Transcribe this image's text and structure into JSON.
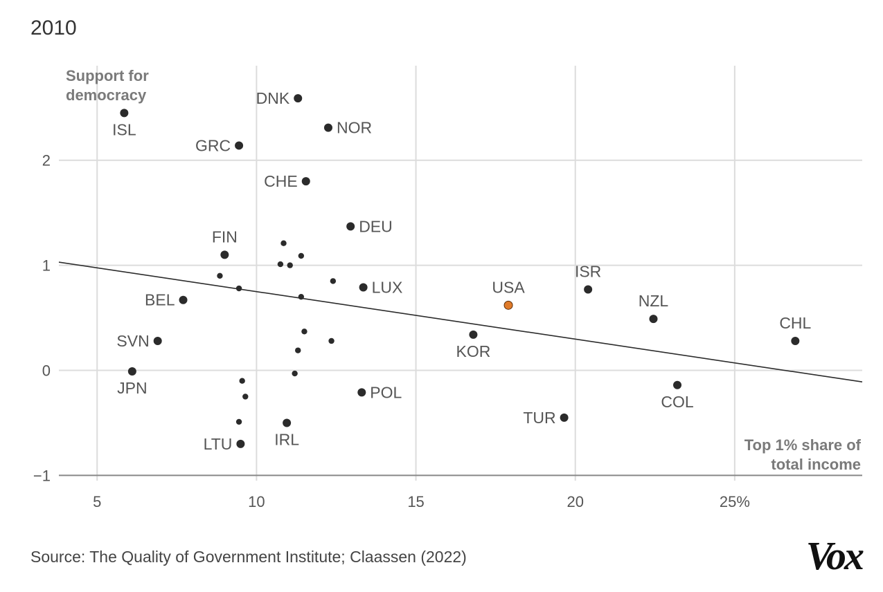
{
  "header": {
    "year": "2010"
  },
  "footer": {
    "source": "Source: The Quality of Government Institute; Claassen (2022)",
    "logo": "Vox"
  },
  "colors": {
    "point": "#2b2b2b",
    "highlight": "#e07b2a",
    "grid": "#dcdcdc",
    "trend": "#2b2b2b"
  },
  "chart_data": {
    "type": "scatter",
    "ylabel_lines": [
      "Support for",
      "democracy"
    ],
    "xlabel_lines": [
      "Top 1% share of",
      "total income"
    ],
    "xlim": [
      3.8,
      29.0
    ],
    "ylim": [
      -1.05,
      2.9
    ],
    "x_ticks": [
      5,
      10,
      15,
      20,
      25
    ],
    "x_tick_labels": [
      "5",
      "10",
      "15",
      "20",
      "25%"
    ],
    "y_ticks": [
      -1,
      0,
      1,
      2
    ],
    "y_tick_labels": [
      "−1",
      "0",
      "1",
      "2"
    ],
    "grid": true,
    "trend_line": {
      "x": [
        3.8,
        29.0
      ],
      "y": [
        1.03,
        -0.11
      ]
    },
    "points": [
      {
        "label": "ISL",
        "x": 5.85,
        "y": 2.45,
        "pos": "below"
      },
      {
        "label": "DNK",
        "x": 11.3,
        "y": 2.59,
        "pos": "left"
      },
      {
        "label": "NOR",
        "x": 12.25,
        "y": 2.31,
        "pos": "right"
      },
      {
        "label": "GRC",
        "x": 9.45,
        "y": 2.14,
        "pos": "left"
      },
      {
        "label": "CHE",
        "x": 11.55,
        "y": 1.8,
        "pos": "left"
      },
      {
        "label": "DEU",
        "x": 12.95,
        "y": 1.37,
        "pos": "right"
      },
      {
        "label": "FIN",
        "x": 9.0,
        "y": 1.1,
        "pos": "above"
      },
      {
        "label": "LUX",
        "x": 13.35,
        "y": 0.79,
        "pos": "right"
      },
      {
        "label": "BEL",
        "x": 7.7,
        "y": 0.67,
        "pos": "left"
      },
      {
        "label": "USA",
        "x": 17.9,
        "y": 0.62,
        "pos": "above",
        "highlight": true
      },
      {
        "label": "ISR",
        "x": 20.4,
        "y": 0.77,
        "pos": "above"
      },
      {
        "label": "NZL",
        "x": 22.45,
        "y": 0.49,
        "pos": "above"
      },
      {
        "label": "CHL",
        "x": 26.9,
        "y": 0.28,
        "pos": "above"
      },
      {
        "label": "KOR",
        "x": 16.8,
        "y": 0.34,
        "pos": "below"
      },
      {
        "label": "SVN",
        "x": 6.9,
        "y": 0.28,
        "pos": "left"
      },
      {
        "label": "JPN",
        "x": 6.1,
        "y": -0.01,
        "pos": "below"
      },
      {
        "label": "COL",
        "x": 23.2,
        "y": -0.14,
        "pos": "below"
      },
      {
        "label": "POL",
        "x": 13.3,
        "y": -0.21,
        "pos": "right"
      },
      {
        "label": "TUR",
        "x": 19.65,
        "y": -0.45,
        "pos": "left"
      },
      {
        "label": "IRL",
        "x": 10.95,
        "y": -0.5,
        "pos": "below"
      },
      {
        "label": "LTU",
        "x": 9.5,
        "y": -0.7,
        "pos": "left"
      },
      {
        "label": "",
        "x": 10.85,
        "y": 1.21,
        "small": true
      },
      {
        "label": "",
        "x": 11.4,
        "y": 1.09,
        "small": true
      },
      {
        "label": "",
        "x": 10.75,
        "y": 1.01,
        "small": true
      },
      {
        "label": "",
        "x": 11.05,
        "y": 1.0,
        "small": true
      },
      {
        "label": "",
        "x": 8.85,
        "y": 0.9,
        "small": true
      },
      {
        "label": "",
        "x": 12.4,
        "y": 0.85,
        "small": true
      },
      {
        "label": "",
        "x": 9.45,
        "y": 0.78,
        "small": true
      },
      {
        "label": "",
        "x": 11.4,
        "y": 0.7,
        "small": true
      },
      {
        "label": "",
        "x": 11.5,
        "y": 0.37,
        "small": true
      },
      {
        "label": "",
        "x": 12.35,
        "y": 0.28,
        "small": true
      },
      {
        "label": "",
        "x": 11.3,
        "y": 0.19,
        "small": true
      },
      {
        "label": "",
        "x": 11.2,
        "y": -0.03,
        "small": true
      },
      {
        "label": "",
        "x": 9.55,
        "y": -0.1,
        "small": true
      },
      {
        "label": "",
        "x": 9.65,
        "y": -0.25,
        "small": true
      },
      {
        "label": "",
        "x": 9.45,
        "y": -0.49,
        "small": true
      }
    ]
  }
}
